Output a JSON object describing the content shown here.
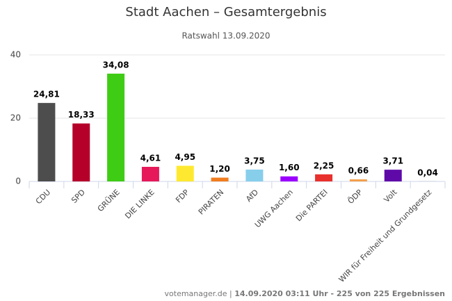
{
  "chart_data": {
    "type": "bar",
    "title": "Stadt Aachen – Gesamtergebnis",
    "subtitle": "Ratswahl 13.09.2020",
    "categories": [
      "CDU",
      "SPD",
      "GRÜNE",
      "DIE LINKE",
      "FDP",
      "PIRATEN",
      "AfD",
      "UWG Aachen",
      "Die PARTEI",
      "ÖDP",
      "Volt",
      "WIR für Freiheit und Grundgesetz"
    ],
    "values": [
      24.81,
      18.33,
      34.08,
      4.61,
      4.95,
      1.2,
      3.75,
      1.6,
      2.25,
      0.66,
      3.71,
      0.04
    ],
    "value_labels": [
      "24,81",
      "18,33",
      "34,08",
      "4,61",
      "4,95",
      "1,20",
      "3,75",
      "1,60",
      "2,25",
      "0,66",
      "3,71",
      "0,04"
    ],
    "colors": [
      "#4d4d4d",
      "#b5002a",
      "#3fcc15",
      "#e6195a",
      "#ffe930",
      "#f07d1e",
      "#87ceeb",
      "#9b00ff",
      "#e8302d",
      "#f5a04c",
      "#5f0aa8",
      "#999999"
    ],
    "ylim": [
      0,
      40
    ],
    "yticks": [
      0,
      20,
      40
    ],
    "grid": true,
    "credits": [
      "votemanager.de |",
      "14.09.2020 03:11 Uhr - 225 von 225 Ergebnissen"
    ]
  }
}
